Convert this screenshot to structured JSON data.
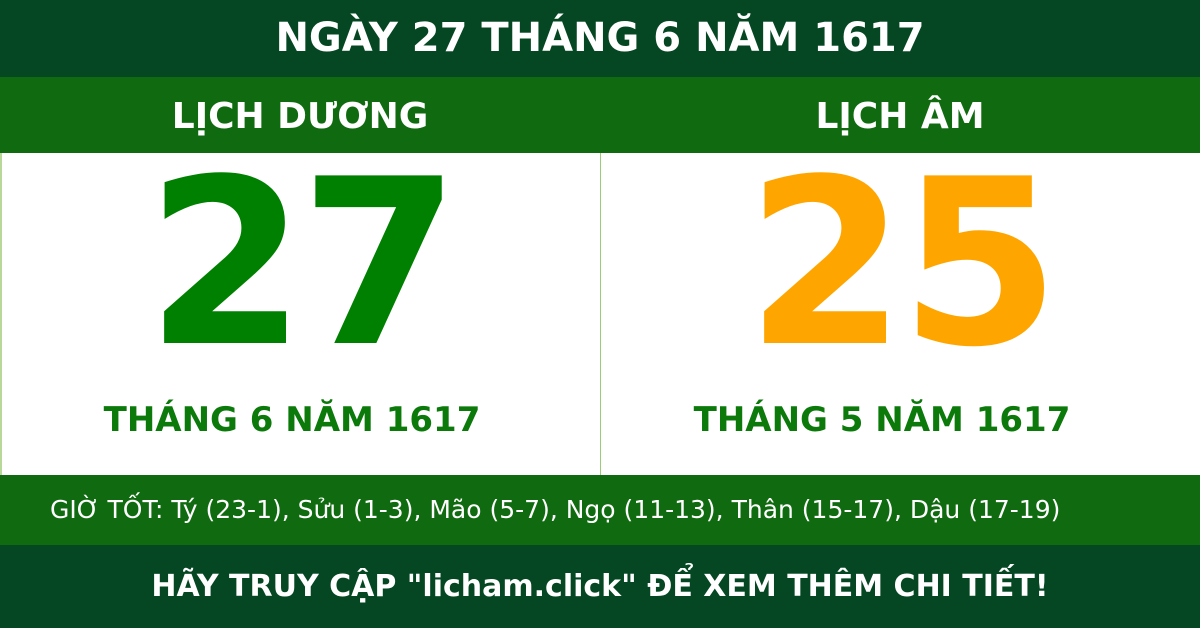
{
  "title": "NGÀY 27 THÁNG 6 NĂM 1617",
  "solar": {
    "label": "LỊCH DƯƠNG",
    "day": "27",
    "month_year": "THÁNG 6 NĂM 1617"
  },
  "lunar": {
    "label": "LỊCH ÂM",
    "day": "25",
    "month_year": "THÁNG 5 NĂM 1617"
  },
  "good_hours": "GIỜ TỐT: Tý (23-1), Sửu (1-3), Mão (5-7), Ngọ (11-13), Thân (15-17), Dậu (17-19)",
  "footer": "HÃY TRUY CẬP \"licham.click\" ĐỂ XEM THÊM CHI TIẾT!",
  "colors": {
    "dark_green": "#044722",
    "green": "#106b10",
    "solar_day": "#008000",
    "lunar_day": "#ffa500"
  }
}
